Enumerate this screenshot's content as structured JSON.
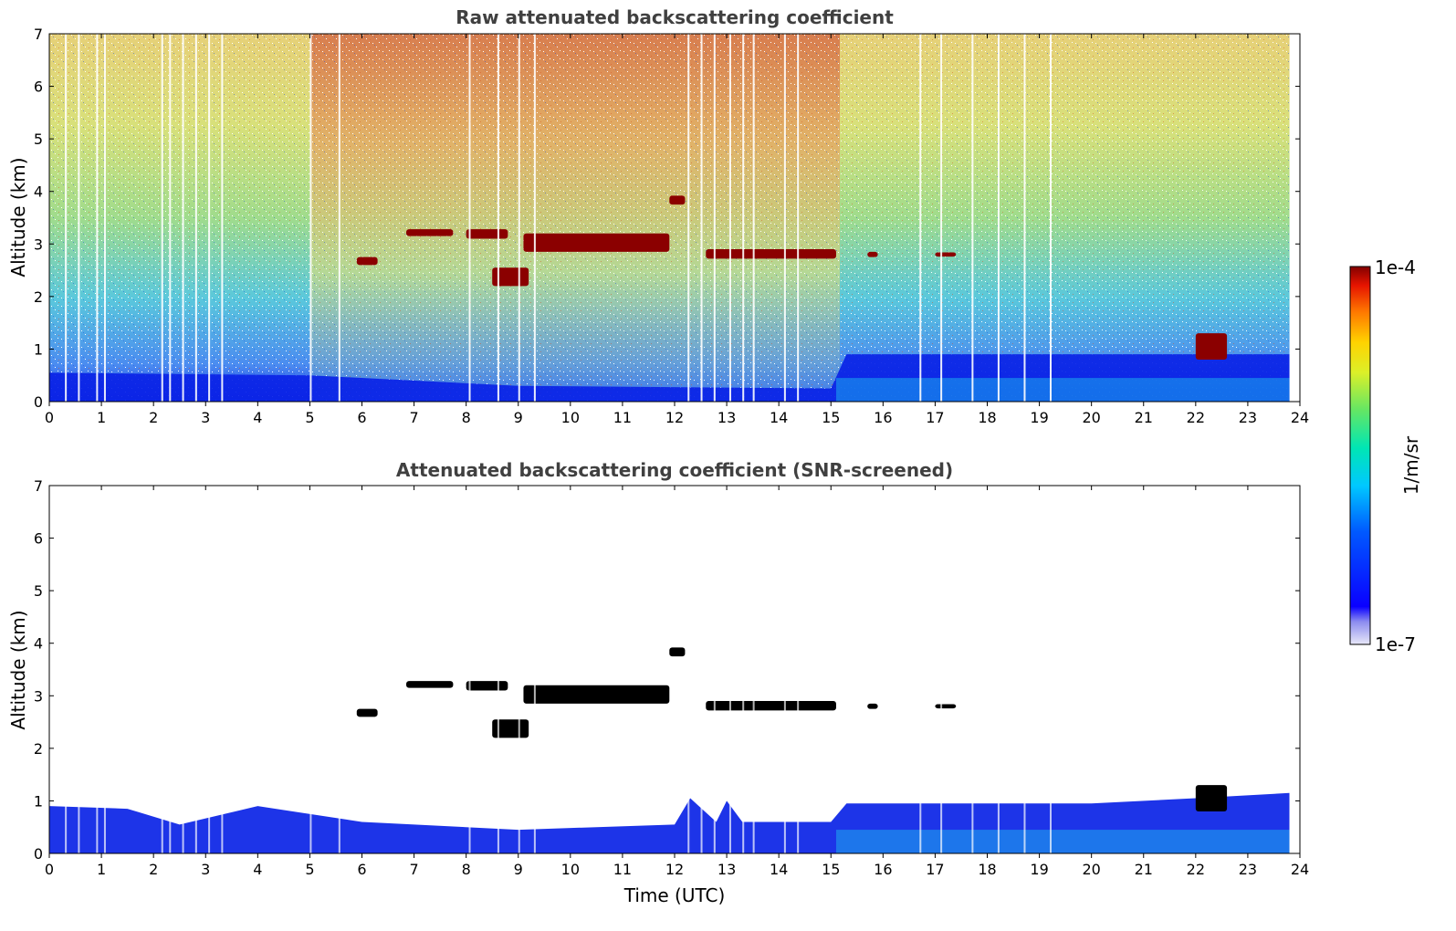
{
  "chart_data": [
    {
      "type": "heatmap",
      "title": "Raw attenuated backscattering coefficient",
      "xlabel": "",
      "ylabel": "Altitude (km)",
      "xlim": [
        0,
        24
      ],
      "ylim": [
        0,
        7
      ],
      "x_ticks": [
        "0",
        "1",
        "2",
        "3",
        "4",
        "5",
        "6",
        "7",
        "8",
        "9",
        "10",
        "11",
        "12",
        "13",
        "14",
        "15",
        "16",
        "17",
        "18",
        "19",
        "20",
        "21",
        "22",
        "23",
        "24"
      ],
      "y_ticks": [
        "0",
        "1",
        "2",
        "3",
        "4",
        "5",
        "6",
        "7"
      ],
      "data_end_time": 23.8,
      "boundary_layer_top_km": [
        {
          "t": 0,
          "z": 0.55
        },
        {
          "t": 5,
          "z": 0.5
        },
        {
          "t": 9,
          "z": 0.3
        },
        {
          "t": 15,
          "z": 0.25
        },
        {
          "t": 15.3,
          "z": 0.9
        },
        {
          "t": 24,
          "z": 0.9
        }
      ],
      "cloud_layers": [
        {
          "start": 5.9,
          "end": 6.3,
          "base_km": 2.6,
          "top_km": 2.75
        },
        {
          "start": 6.85,
          "end": 7.75,
          "base_km": 3.15,
          "top_km": 3.28
        },
        {
          "start": 8.0,
          "end": 8.8,
          "base_km": 3.1,
          "top_km": 3.28
        },
        {
          "start": 8.5,
          "end": 9.2,
          "base_km": 2.2,
          "top_km": 2.55
        },
        {
          "start": 9.1,
          "end": 11.9,
          "base_km": 2.85,
          "top_km": 3.2
        },
        {
          "start": 11.9,
          "end": 12.2,
          "base_km": 3.75,
          "top_km": 3.92
        },
        {
          "start": 12.6,
          "end": 15.1,
          "base_km": 2.72,
          "top_km": 2.9
        },
        {
          "start": 15.7,
          "end": 15.9,
          "base_km": 2.75,
          "top_km": 2.85
        },
        {
          "start": 17.0,
          "end": 17.4,
          "base_km": 2.76,
          "top_km": 2.84
        },
        {
          "start": 22.0,
          "end": 22.6,
          "base_km": 0.8,
          "top_km": 1.3
        }
      ],
      "colorbar": {
        "min_label": "1e-7",
        "max_label": "1e-4",
        "label": "1/m/sr",
        "scale": "log"
      }
    },
    {
      "type": "heatmap",
      "title": "Attenuated backscattering coefficient (SNR-screened)",
      "xlabel": "Time (UTC)",
      "ylabel": "Altitude (km)",
      "xlim": [
        0,
        24
      ],
      "ylim": [
        0,
        7
      ],
      "x_ticks": [
        "0",
        "1",
        "2",
        "3",
        "4",
        "5",
        "6",
        "7",
        "8",
        "9",
        "10",
        "11",
        "12",
        "13",
        "14",
        "15",
        "16",
        "17",
        "18",
        "19",
        "20",
        "21",
        "22",
        "23",
        "24"
      ],
      "y_ticks": [
        "0",
        "1",
        "2",
        "3",
        "4",
        "5",
        "6",
        "7"
      ],
      "boundary_layer_top_km": [
        {
          "t": 0,
          "z": 0.9
        },
        {
          "t": 1.5,
          "z": 0.85
        },
        {
          "t": 2.5,
          "z": 0.55
        },
        {
          "t": 4,
          "z": 0.9
        },
        {
          "t": 6,
          "z": 0.6
        },
        {
          "t": 9,
          "z": 0.45
        },
        {
          "t": 12,
          "z": 0.55
        },
        {
          "t": 12.3,
          "z": 1.05
        },
        {
          "t": 12.8,
          "z": 0.6
        },
        {
          "t": 13,
          "z": 1.0
        },
        {
          "t": 13.3,
          "z": 0.6
        },
        {
          "t": 15,
          "z": 0.6
        },
        {
          "t": 15.3,
          "z": 0.95
        },
        {
          "t": 20,
          "z": 0.95
        },
        {
          "t": 22,
          "z": 1.05
        },
        {
          "t": 23.8,
          "z": 1.15
        }
      ]
    }
  ],
  "colors": {
    "cloud_raw": "#8b0000",
    "cloud_screened": "#000000",
    "low_signal": "#0a23e6",
    "near_surface": "#1ec8f0"
  }
}
